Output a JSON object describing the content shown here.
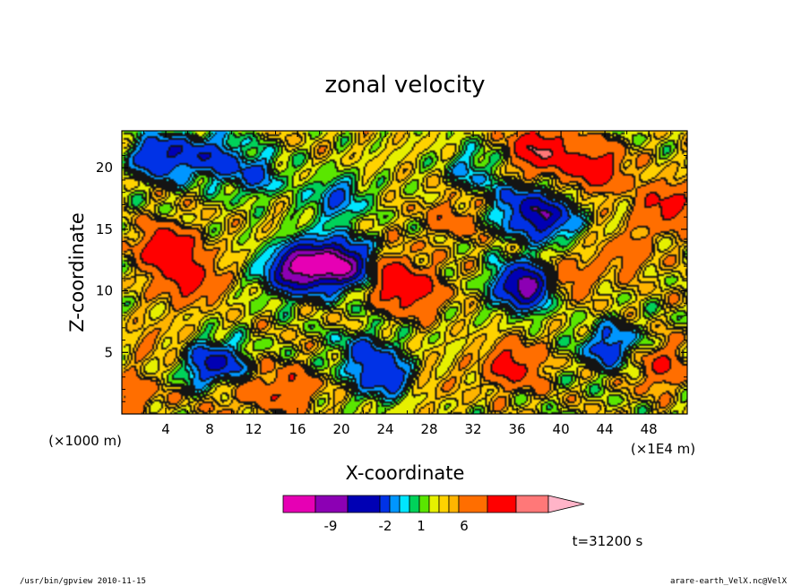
{
  "chart_data": {
    "type": "heatmap",
    "title": "zonal velocity",
    "xlabel": "X-coordinate",
    "ylabel": "Z-coordinate",
    "x_unit_left": "(×1000 m)",
    "x_unit_right": "(×1E4 m)",
    "xlim": [
      0,
      51.5
    ],
    "ylim": [
      0,
      23
    ],
    "x_ticks": [
      4,
      8,
      12,
      16,
      20,
      24,
      28,
      32,
      36,
      40,
      44,
      48
    ],
    "y_ticks": [
      5,
      10,
      15,
      20
    ],
    "colorbar": {
      "colors": [
        "#e600b4",
        "#8c00b4",
        "#0000b4",
        "#0032e6",
        "#0096ff",
        "#00e6ff",
        "#00d25a",
        "#5ae600",
        "#e6f000",
        "#ffd200",
        "#ffb400",
        "#ff6e00",
        "#ff0000",
        "#ff7878",
        "#ffb4c8"
      ],
      "tick_labels": [
        "-9",
        "-2",
        "1",
        "6"
      ]
    },
    "time_label": "t=31200 s",
    "features": [
      {
        "x": 4.0,
        "z": 13.5,
        "v": 5
      },
      {
        "x": 6.0,
        "z": 11.0,
        "v": 4
      },
      {
        "x": 3.5,
        "z": 21.0,
        "v": -5
      },
      {
        "x": 8.0,
        "z": 21.0,
        "v": -4
      },
      {
        "x": 12.0,
        "z": 19.5,
        "v": -3
      },
      {
        "x": 15.5,
        "z": 11.5,
        "v": -6
      },
      {
        "x": 17.5,
        "z": 12.5,
        "v": -7
      },
      {
        "x": 20.8,
        "z": 12.0,
        "v": -9
      },
      {
        "x": 23.5,
        "z": 11.5,
        "v": 5
      },
      {
        "x": 26.5,
        "z": 10.0,
        "v": 4
      },
      {
        "x": 30.0,
        "z": 16.0,
        "v": 2
      },
      {
        "x": 36.0,
        "z": 17.0,
        "v": -3
      },
      {
        "x": 38.5,
        "z": 16.0,
        "v": -6
      },
      {
        "x": 36.8,
        "z": 10.5,
        "v": -9
      },
      {
        "x": 35.5,
        "z": 4.0,
        "v": 4
      },
      {
        "x": 40.0,
        "z": 11.0,
        "v": 3
      },
      {
        "x": 38.0,
        "z": 21.5,
        "v": 6
      },
      {
        "x": 43.0,
        "z": 20.0,
        "v": 5
      },
      {
        "x": 49.5,
        "z": 17.0,
        "v": 4
      },
      {
        "x": 44.5,
        "z": 5.5,
        "v": -4
      },
      {
        "x": 49.0,
        "z": 4.0,
        "v": 3
      },
      {
        "x": 22.0,
        "z": 5.0,
        "v": -3
      },
      {
        "x": 24.0,
        "z": 3.0,
        "v": -4
      },
      {
        "x": 8.5,
        "z": 4.0,
        "v": -6
      },
      {
        "x": 10.0,
        "z": 2.0,
        "v": 2
      },
      {
        "x": 15.0,
        "z": 2.0,
        "v": 3
      },
      {
        "x": 3.0,
        "z": 6.0,
        "v": 1
      },
      {
        "x": 28.0,
        "z": 2.5,
        "v": 1
      },
      {
        "x": 32.0,
        "z": 20.0,
        "v": -2
      },
      {
        "x": 19.5,
        "z": 17.5,
        "v": -3
      },
      {
        "x": 46.0,
        "z": 13.0,
        "v": 2
      },
      {
        "x": 1.0,
        "z": 1.5,
        "v": 2
      }
    ]
  },
  "footer": {
    "left": "/usr/bin/gpview  2010-11-15",
    "right": "arare-earth_VelX.nc@VelX"
  }
}
